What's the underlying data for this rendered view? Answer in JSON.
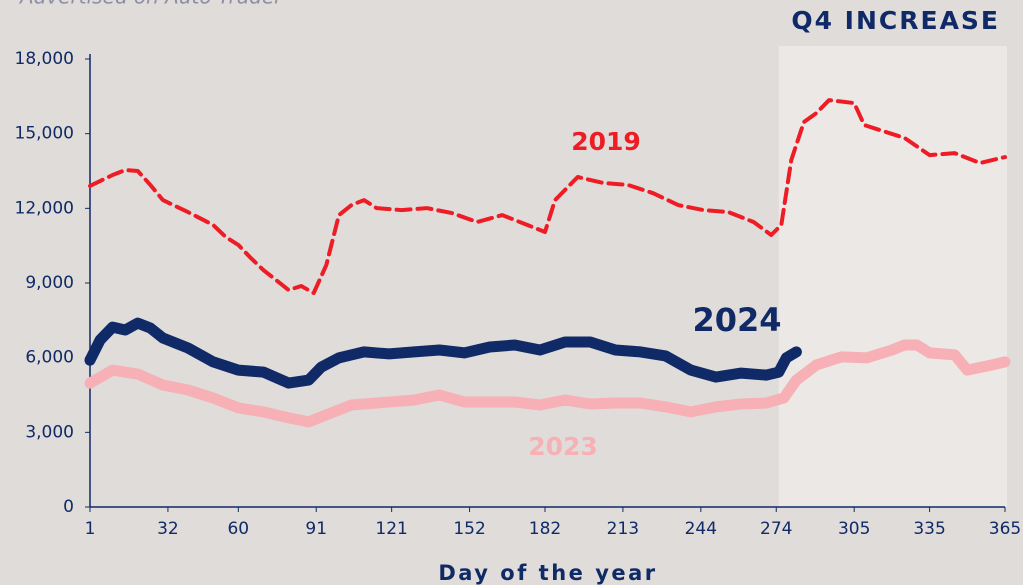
{
  "chart_data": {
    "type": "line",
    "subtitle": "Advertised on Auto Trader",
    "annotation": "Q4 INCREASE",
    "highlight_range": [
      275,
      365
    ],
    "x_label": "Day of the year",
    "xlim": [
      1,
      365
    ],
    "ylim": [
      0,
      18000
    ],
    "xticks": [
      1,
      32,
      60,
      91,
      121,
      152,
      182,
      213,
      244,
      274,
      305,
      335,
      365
    ],
    "yticks": [
      0,
      {
        "value": 3000,
        "label": "3,000"
      },
      {
        "value": 6000,
        "label": "6,000"
      },
      {
        "value": 9000,
        "label": "9,000"
      },
      {
        "value": 12000,
        "label": "12,000"
      },
      {
        "value": 15000,
        "label": "15,000"
      },
      {
        "value": 18000,
        "label": "18,000"
      }
    ],
    "series": [
      {
        "name": "2019",
        "color": "#ee1c25",
        "dashed": true,
        "x": [
          1,
          10,
          15,
          20,
          25,
          30,
          40,
          50,
          55,
          60,
          65,
          70,
          75,
          80,
          85,
          90,
          95,
          100,
          105,
          110,
          115,
          125,
          135,
          145,
          155,
          165,
          175,
          182,
          186,
          195,
          205,
          215,
          225,
          235,
          245,
          255,
          265,
          272,
          276,
          280,
          285,
          290,
          295,
          305,
          309,
          315,
          325,
          335,
          345,
          355,
          365
        ],
        "values": [
          12900,
          13340,
          13540,
          13500,
          12940,
          12330,
          11850,
          11330,
          10850,
          10530,
          10000,
          9520,
          9120,
          8720,
          8880,
          8600,
          9720,
          11730,
          12130,
          12330,
          12010,
          11930,
          12010,
          11810,
          11450,
          11730,
          11330,
          11050,
          12330,
          13260,
          13020,
          12940,
          12610,
          12130,
          11930,
          11850,
          11450,
          10930,
          11330,
          13940,
          15470,
          15830,
          16350,
          16230,
          15350,
          15150,
          14830,
          14140,
          14220,
          13820,
          14060
        ]
      },
      {
        "name": "2024",
        "color": "#0f2a66",
        "x": [
          1,
          5,
          10,
          15,
          20,
          25,
          30,
          40,
          50,
          60,
          70,
          80,
          88,
          93,
          100,
          110,
          120,
          130,
          140,
          150,
          160,
          170,
          180,
          190,
          200,
          210,
          220,
          230,
          240,
          250,
          260,
          270,
          275,
          278,
          282
        ],
        "values": [
          5900,
          6710,
          7230,
          7110,
          7390,
          7190,
          6790,
          6390,
          5830,
          5500,
          5420,
          4980,
          5100,
          5620,
          5990,
          6230,
          6150,
          6230,
          6310,
          6190,
          6430,
          6510,
          6310,
          6630,
          6630,
          6310,
          6230,
          6070,
          5500,
          5220,
          5380,
          5300,
          5420,
          5990,
          6230
        ]
      },
      {
        "name": "2023",
        "color": "#f7b0b5",
        "x": [
          1,
          10,
          20,
          30,
          40,
          50,
          60,
          70,
          80,
          88,
          95,
          105,
          115,
          130,
          140,
          150,
          160,
          170,
          180,
          190,
          200,
          210,
          220,
          230,
          240,
          250,
          260,
          270,
          277,
          282,
          290,
          300,
          310,
          320,
          325,
          330,
          335,
          345,
          350,
          360,
          365
        ],
        "values": [
          4980,
          5500,
          5340,
          4900,
          4700,
          4380,
          3980,
          3820,
          3580,
          3420,
          3700,
          4100,
          4180,
          4300,
          4500,
          4220,
          4220,
          4220,
          4100,
          4300,
          4140,
          4180,
          4180,
          4020,
          3820,
          4020,
          4140,
          4180,
          4380,
          5100,
          5710,
          6030,
          5990,
          6310,
          6510,
          6510,
          6190,
          6110,
          5500,
          5710,
          5830
        ]
      }
    ]
  }
}
